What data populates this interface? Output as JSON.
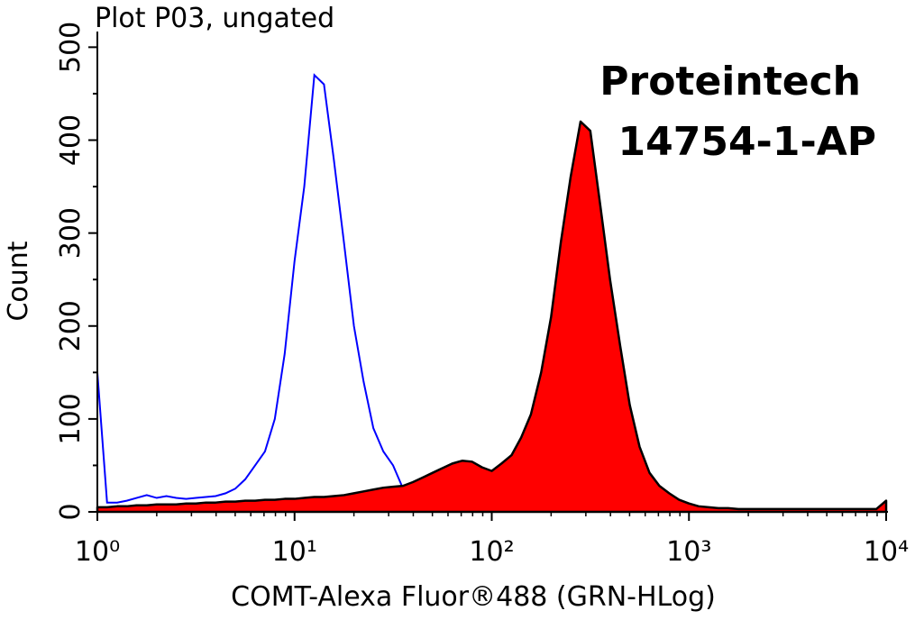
{
  "chart_data": {
    "type": "histogram-overlay",
    "title": "Plot P03, ungated",
    "annotations": [
      "Proteintech",
      "14754-1-AP"
    ],
    "x_label": "COMT-Alexa Fluor®488 (GRN-HLog)",
    "y_label": "Count",
    "xscale": "log",
    "xlim": [
      1,
      10000
    ],
    "ylim": [
      0,
      512
    ],
    "xticks": [
      {
        "value": 1,
        "label": "10⁰"
      },
      {
        "value": 10,
        "label": "10¹"
      },
      {
        "value": 100,
        "label": "10²"
      },
      {
        "value": 1000,
        "label": "10³"
      },
      {
        "value": 10000,
        "label": "10⁴"
      }
    ],
    "xminorticks": [
      2,
      3,
      4,
      5,
      6,
      7,
      8,
      9,
      20,
      30,
      40,
      50,
      60,
      70,
      80,
      90,
      200,
      300,
      400,
      500,
      600,
      700,
      800,
      900,
      2000,
      3000,
      4000,
      5000,
      6000,
      7000,
      8000,
      9000
    ],
    "yticks": [
      0,
      100,
      200,
      300,
      400,
      500
    ],
    "yminorticks": [
      50,
      150,
      250,
      350,
      450
    ],
    "x": [
      1,
      1.12,
      1.26,
      1.41,
      1.58,
      1.78,
      2,
      2.24,
      2.51,
      2.82,
      3.16,
      3.55,
      3.98,
      4.47,
      5.01,
      5.62,
      6.31,
      7.08,
      7.94,
      8.91,
      10,
      11.2,
      12.6,
      14.1,
      15.8,
      17.8,
      20,
      22.4,
      25.1,
      28.2,
      31.6,
      35.5,
      39.8,
      44.7,
      50.1,
      56.2,
      63.1,
      70.8,
      79.4,
      89.1,
      100,
      112,
      126,
      141,
      158,
      178,
      200,
      224,
      251,
      282,
      316,
      355,
      398,
      447,
      501,
      562,
      631,
      708,
      794,
      891,
      1000,
      1120,
      1260,
      1410,
      1580,
      1780,
      2000,
      2240,
      2510,
      2820,
      3160,
      3550,
      3980,
      4470,
      5010,
      5620,
      6310,
      7080,
      7940,
      8910,
      10000
    ],
    "series": [
      {
        "color": "#0000ff",
        "fill": false,
        "values": [
          150,
          10,
          10,
          12,
          15,
          18,
          15,
          17,
          15,
          14,
          15,
          16,
          17,
          20,
          25,
          35,
          50,
          65,
          100,
          170,
          270,
          350,
          470,
          460,
          380,
          290,
          200,
          140,
          90,
          65,
          50,
          25,
          18,
          12,
          10,
          5,
          3,
          2,
          1,
          1,
          1,
          1,
          1,
          1,
          1,
          1,
          1,
          1,
          1,
          1,
          1,
          1,
          1,
          1,
          1,
          1,
          1,
          1,
          1,
          1,
          1,
          1,
          1,
          1,
          1,
          1,
          1,
          1,
          1,
          1,
          1,
          1,
          1,
          1,
          1,
          1,
          1,
          1,
          1,
          1,
          2
        ]
      },
      {
        "color": "#ff0000",
        "fill": true,
        "stroke": "#000000",
        "values": [
          5,
          5,
          6,
          6,
          7,
          7,
          8,
          8,
          8,
          9,
          9,
          10,
          10,
          11,
          11,
          12,
          12,
          13,
          13,
          14,
          14,
          15,
          16,
          16,
          17,
          18,
          20,
          22,
          24,
          26,
          27,
          28,
          32,
          37,
          42,
          47,
          52,
          55,
          54,
          48,
          44,
          52,
          61,
          80,
          105,
          150,
          210,
          290,
          360,
          420,
          410,
          330,
          250,
          180,
          115,
          70,
          42,
          28,
          20,
          13,
          9,
          6,
          5,
          4,
          4,
          3,
          3,
          3,
          3,
          3,
          3,
          3,
          3,
          3,
          3,
          3,
          3,
          3,
          3,
          3,
          12
        ]
      }
    ]
  }
}
